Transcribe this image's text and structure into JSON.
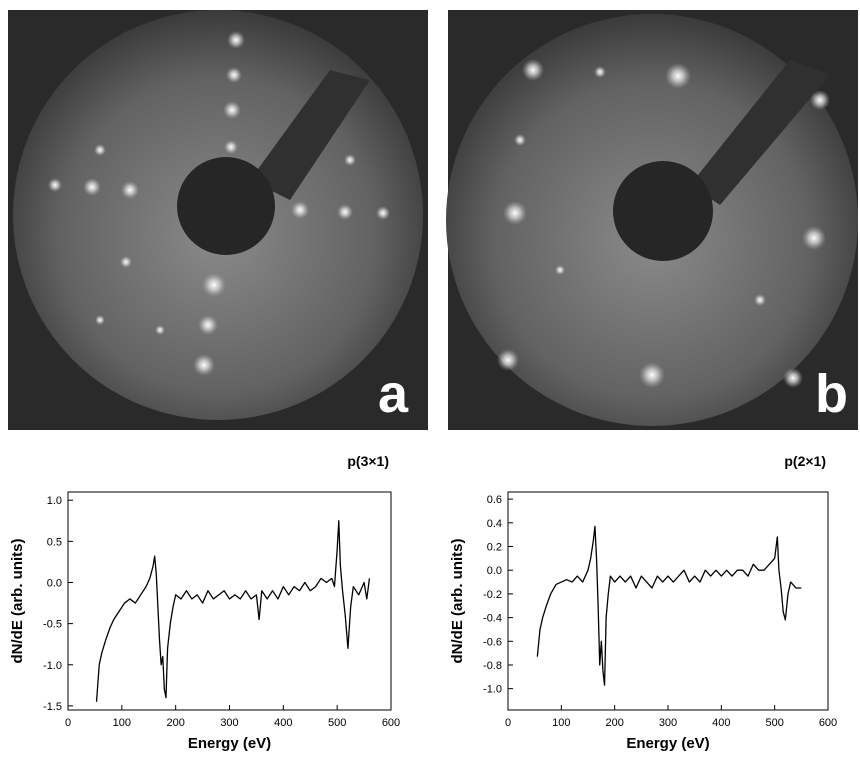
{
  "panels": [
    {
      "label": "a"
    },
    {
      "label": "b"
    }
  ],
  "chart_data": [
    {
      "type": "line",
      "title": "p(3×1)",
      "xlabel": "Energy (eV)",
      "ylabel": "dN/dE (arb. units)",
      "xlim": [
        0,
        600
      ],
      "xticks": [
        0,
        100,
        200,
        300,
        400,
        500,
        600
      ],
      "ylim": [
        -1.55,
        1.1
      ],
      "yticks": [
        {
          "value": 1.0,
          "label": "1.0"
        },
        0.5,
        {
          "value": 0,
          "label": "0.0"
        },
        -0.5,
        {
          "value": -1.0,
          "label": "-1.0"
        },
        -1.5
      ],
      "color": "#000000",
      "x": [
        53,
        58,
        63,
        70,
        78,
        85,
        95,
        105,
        115,
        125,
        135,
        145,
        152,
        158,
        161,
        164,
        167,
        170,
        173,
        176,
        179,
        182,
        185,
        190,
        195,
        200,
        210,
        220,
        230,
        240,
        250,
        260,
        270,
        280,
        290,
        300,
        310,
        320,
        330,
        340,
        350,
        355,
        360,
        370,
        380,
        390,
        400,
        410,
        420,
        430,
        440,
        450,
        460,
        470,
        480,
        490,
        495,
        500,
        503,
        506,
        510,
        515,
        520,
        525,
        530,
        540,
        550,
        555,
        560
      ],
      "values": [
        -1.45,
        -1.0,
        -0.85,
        -0.7,
        -0.55,
        -0.45,
        -0.35,
        -0.25,
        -0.2,
        -0.25,
        -0.15,
        -0.05,
        0.05,
        0.2,
        0.32,
        0.1,
        -0.3,
        -0.7,
        -1.0,
        -0.9,
        -1.3,
        -1.4,
        -0.8,
        -0.5,
        -0.3,
        -0.15,
        -0.2,
        -0.1,
        -0.2,
        -0.15,
        -0.25,
        -0.1,
        -0.2,
        -0.15,
        -0.1,
        -0.2,
        -0.15,
        -0.2,
        -0.1,
        -0.2,
        -0.15,
        -0.45,
        -0.1,
        -0.2,
        -0.1,
        -0.2,
        -0.05,
        -0.15,
        -0.05,
        -0.1,
        0.0,
        -0.1,
        -0.05,
        0.05,
        0.0,
        0.05,
        -0.05,
        0.4,
        0.75,
        0.2,
        -0.1,
        -0.4,
        -0.8,
        -0.3,
        -0.05,
        -0.15,
        0.0,
        -0.2,
        0.05
      ]
    },
    {
      "type": "line",
      "title": "p(2×1)",
      "xlabel": "Energy (eV)",
      "ylabel": "dN/dE (arb. units)",
      "xlim": [
        0,
        600
      ],
      "xticks": [
        0,
        100,
        200,
        300,
        400,
        500,
        600
      ],
      "ylim": [
        -1.18,
        0.66
      ],
      "yticks": [
        0.6,
        0.4,
        0.2,
        {
          "value": 0,
          "label": "0.0"
        },
        -0.2,
        -0.4,
        -0.6,
        -0.8,
        {
          "value": -1.0,
          "label": "-1.0"
        }
      ],
      "color": "#000000",
      "x": [
        55,
        60,
        65,
        72,
        80,
        90,
        100,
        110,
        120,
        130,
        140,
        150,
        155,
        160,
        163,
        166,
        169,
        172,
        175,
        178,
        181,
        184,
        188,
        192,
        200,
        210,
        220,
        230,
        240,
        250,
        260,
        270,
        280,
        290,
        300,
        310,
        320,
        330,
        340,
        350,
        360,
        370,
        380,
        390,
        400,
        410,
        420,
        430,
        440,
        450,
        460,
        470,
        480,
        490,
        500,
        505,
        508,
        512,
        516,
        520,
        525,
        530,
        540,
        550
      ],
      "values": [
        -0.73,
        -0.5,
        -0.4,
        -0.3,
        -0.2,
        -0.12,
        -0.1,
        -0.08,
        -0.1,
        -0.05,
        -0.1,
        0.0,
        0.1,
        0.25,
        0.37,
        0.1,
        -0.3,
        -0.8,
        -0.6,
        -0.85,
        -0.97,
        -0.4,
        -0.2,
        -0.05,
        -0.1,
        -0.05,
        -0.1,
        -0.05,
        -0.15,
        -0.05,
        -0.1,
        -0.15,
        -0.05,
        -0.1,
        -0.05,
        -0.1,
        -0.05,
        0.0,
        -0.1,
        -0.05,
        -0.1,
        0.0,
        -0.05,
        0.0,
        -0.05,
        0.0,
        -0.05,
        0.0,
        0.0,
        -0.05,
        0.05,
        0.0,
        0.0,
        0.05,
        0.1,
        0.28,
        0.0,
        -0.15,
        -0.35,
        -0.42,
        -0.2,
        -0.1,
        -0.15,
        -0.15
      ]
    }
  ]
}
